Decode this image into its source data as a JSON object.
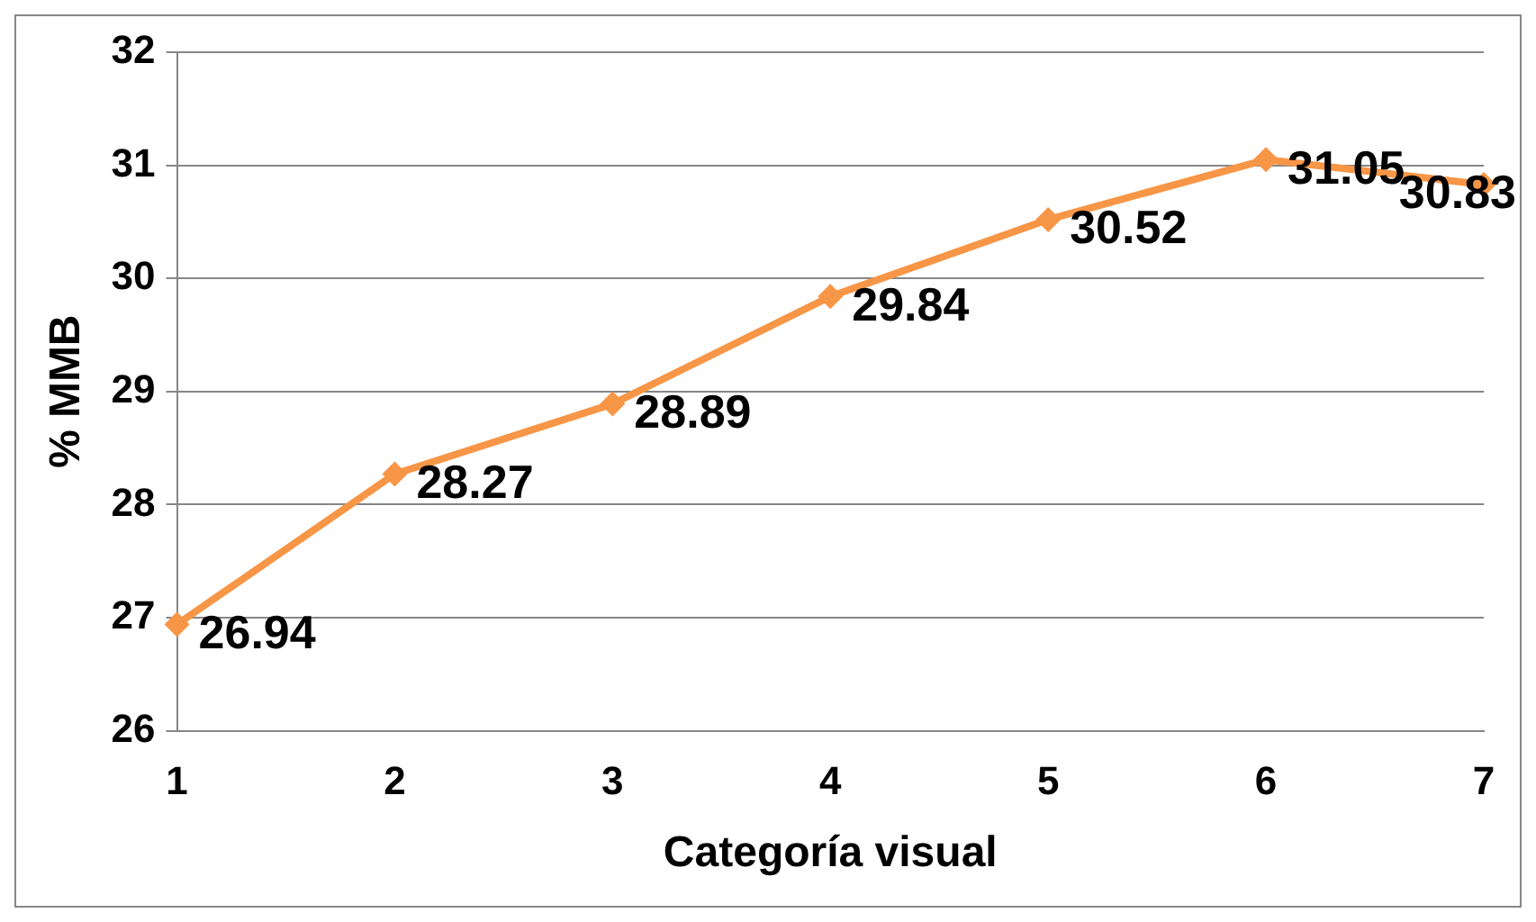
{
  "chart_data": {
    "type": "line",
    "xlabel": "Categoría visual",
    "ylabel": "% MMB",
    "categories": [
      "1",
      "2",
      "3",
      "4",
      "5",
      "6",
      "7"
    ],
    "series": [
      {
        "color": "#f79646",
        "values": [
          26.94,
          28.27,
          28.89,
          29.84,
          30.52,
          31.05,
          30.83
        ]
      }
    ],
    "ylim": [
      26,
      32
    ],
    "yticks": [
      26,
      27,
      28,
      29,
      30,
      31,
      32
    ],
    "grid": "y",
    "legend": false,
    "marker": "diamond",
    "line_style": "solid",
    "data_labels": true
  }
}
